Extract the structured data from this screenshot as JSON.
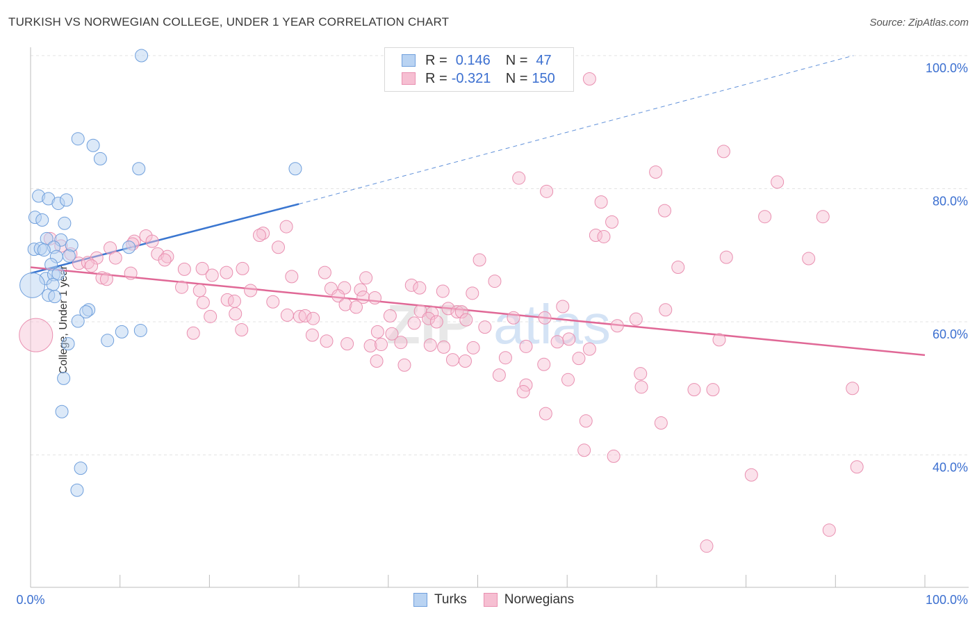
{
  "title": "TURKISH VS NORWEGIAN COLLEGE, UNDER 1 YEAR CORRELATION CHART",
  "source": "Source: ZipAtlas.com",
  "legend": {
    "r_label": "R =",
    "n_label": "N =",
    "turks_r": "0.146",
    "turks_n": "47",
    "norw_r": "-0.321",
    "norw_n": "150"
  },
  "bottom_legend": {
    "turks": "Turks",
    "norwegians": "Norwegians"
  },
  "colors": {
    "turks_fill": "#b9d3f2",
    "turks_edge": "#6f9fdc",
    "turks_line": "#3a76d0",
    "norw_fill": "#f6bfd2",
    "norw_edge": "#e98fb0",
    "norw_line": "#e06896",
    "axis_text": "#3b6fd0",
    "grid": "#e3e3e3"
  },
  "chart_data": {
    "type": "scatter",
    "title": "TURKISH VS NORWEGIAN COLLEGE, UNDER 1 YEAR CORRELATION CHART",
    "ylabel": "College, Under 1 year",
    "xlabel": "",
    "x_tick_labels": [
      "0.0%",
      "100.0%"
    ],
    "y_tick_labels": [
      "40.0%",
      "60.0%",
      "80.0%",
      "100.0%"
    ],
    "y_ticks": [
      40,
      60,
      80,
      100
    ],
    "xlim": [
      0,
      100
    ],
    "ylim": [
      20,
      102
    ],
    "grid": true,
    "series": [
      {
        "name": "Turks",
        "r": 0.146,
        "n": 47,
        "trend": {
          "x0": 0,
          "y0": 67.3,
          "x1": 30,
          "y1": 77.7,
          "dashed_to_x": 92,
          "dashed_to_y": 100
        },
        "points": [
          [
            12.4,
            100
          ],
          [
            5.3,
            87.5
          ],
          [
            7,
            86.5
          ],
          [
            7.8,
            84.5
          ],
          [
            12.1,
            83
          ],
          [
            29.6,
            83
          ],
          [
            0.9,
            78.9
          ],
          [
            2,
            78.5
          ],
          [
            3.1,
            77.8
          ],
          [
            4,
            78.3
          ],
          [
            0.5,
            75.7
          ],
          [
            1.3,
            75.3
          ],
          [
            3.8,
            74.8
          ],
          [
            1.8,
            72.5
          ],
          [
            3.4,
            72.3
          ],
          [
            4.6,
            71.5
          ],
          [
            2.6,
            71.2
          ],
          [
            0.4,
            70.9
          ],
          [
            1.1,
            71
          ],
          [
            1.5,
            70.8
          ],
          [
            11,
            71.2
          ],
          [
            2.9,
            69.8
          ],
          [
            4.3,
            69.9
          ],
          [
            2.3,
            68.6
          ],
          [
            1.7,
            66.5
          ],
          [
            2.6,
            67.1
          ],
          [
            3.1,
            67.2
          ],
          [
            2.5,
            65.6
          ],
          [
            0.2,
            65.5
          ],
          [
            2,
            64
          ],
          [
            2.7,
            63.8
          ],
          [
            6.5,
            61.8
          ],
          [
            6.2,
            61.5
          ],
          [
            5.3,
            60.1
          ],
          [
            10.2,
            58.5
          ],
          [
            12.3,
            58.7
          ],
          [
            8.6,
            57.2
          ],
          [
            4.2,
            56.7
          ],
          [
            3.7,
            51.5
          ],
          [
            3.5,
            46.5
          ],
          [
            5.6,
            38
          ],
          [
            5.2,
            34.7
          ]
        ]
      },
      {
        "name": "Norwegians",
        "r": -0.321,
        "n": 150,
        "trend": {
          "x0": 0,
          "y0": 68.2,
          "x1": 100,
          "y1": 55
        },
        "points": [
          [
            0.6,
            58
          ],
          [
            62.5,
            96.5
          ],
          [
            77.5,
            85.6
          ],
          [
            69.9,
            82.5
          ],
          [
            54.6,
            81.6
          ],
          [
            83.5,
            81
          ],
          [
            57.7,
            79.6
          ],
          [
            63.8,
            78
          ],
          [
            70.9,
            76.7
          ],
          [
            82.1,
            75.8
          ],
          [
            88.6,
            75.8
          ],
          [
            65,
            75
          ],
          [
            28.6,
            74.3
          ],
          [
            26,
            73.3
          ],
          [
            25.6,
            73
          ],
          [
            63.2,
            73
          ],
          [
            64.1,
            72.8
          ],
          [
            12.9,
            72.9
          ],
          [
            11.6,
            72.1
          ],
          [
            13.6,
            72.1
          ],
          [
            2.2,
            72.5
          ],
          [
            11.4,
            71.7
          ],
          [
            3.4,
            71.4
          ],
          [
            27.7,
            71.2
          ],
          [
            8.9,
            71.1
          ],
          [
            4.5,
            70.2
          ],
          [
            14.2,
            70.2
          ],
          [
            15.3,
            69.8
          ],
          [
            9.5,
            69.6
          ],
          [
            7.4,
            69.6
          ],
          [
            15,
            69.3
          ],
          [
            5.4,
            68.8
          ],
          [
            6.4,
            68.9
          ],
          [
            87,
            69.5
          ],
          [
            77.8,
            69.7
          ],
          [
            50.2,
            69.3
          ],
          [
            72.4,
            68.2
          ],
          [
            6.8,
            68.4
          ],
          [
            17.2,
            67.9
          ],
          [
            19.2,
            68
          ],
          [
            23.7,
            68
          ],
          [
            21.9,
            67.4
          ],
          [
            20.3,
            67
          ],
          [
            11.2,
            67.3
          ],
          [
            32.9,
            67.4
          ],
          [
            8,
            66.6
          ],
          [
            8.5,
            66.4
          ],
          [
            29.2,
            66.8
          ],
          [
            37.5,
            66.6
          ],
          [
            51.9,
            66.1
          ],
          [
            42.6,
            65.5
          ],
          [
            16.9,
            65.2
          ],
          [
            18.9,
            64.7
          ],
          [
            24.6,
            64.7
          ],
          [
            33.6,
            65
          ],
          [
            35.1,
            65.1
          ],
          [
            36.9,
            64.8
          ],
          [
            43.5,
            65.1
          ],
          [
            46.1,
            64.6
          ],
          [
            49.4,
            64.3
          ],
          [
            22,
            63.3
          ],
          [
            22.8,
            63.1
          ],
          [
            34.4,
            63.9
          ],
          [
            37.2,
            63.7
          ],
          [
            38.5,
            63.6
          ],
          [
            27.1,
            63
          ],
          [
            19.3,
            62.9
          ],
          [
            35.2,
            62.6
          ],
          [
            36.4,
            62.2
          ],
          [
            59.5,
            62.3
          ],
          [
            71,
            61.8
          ],
          [
            46.7,
            62
          ],
          [
            43.6,
            61.6
          ],
          [
            44.9,
            61.3
          ],
          [
            47.7,
            61.5
          ],
          [
            48.2,
            61.5
          ],
          [
            28.7,
            61
          ],
          [
            30.1,
            60.8
          ],
          [
            30.7,
            60.9
          ],
          [
            31.6,
            60.5
          ],
          [
            40.2,
            60.9
          ],
          [
            44.5,
            60.5
          ],
          [
            48.7,
            60.3
          ],
          [
            20.1,
            60.8
          ],
          [
            22.9,
            61.2
          ],
          [
            54,
            60.6
          ],
          [
            57.5,
            60.6
          ],
          [
            67.7,
            60.4
          ],
          [
            65.6,
            59.4
          ],
          [
            50.8,
            59.2
          ],
          [
            42.9,
            59.8
          ],
          [
            45.4,
            60
          ],
          [
            38.8,
            58.5
          ],
          [
            23.6,
            58.8
          ],
          [
            40.4,
            58.2
          ],
          [
            18.2,
            58.3
          ],
          [
            31.5,
            58
          ],
          [
            60.2,
            57.4
          ],
          [
            77,
            57.3
          ],
          [
            58.9,
            57
          ],
          [
            33.1,
            57.1
          ],
          [
            41.4,
            56.9
          ],
          [
            35.4,
            56.7
          ],
          [
            38,
            56.4
          ],
          [
            39.2,
            56.6
          ],
          [
            44.7,
            56.5
          ],
          [
            46.2,
            56.2
          ],
          [
            49.5,
            56.1
          ],
          [
            55.4,
            56.3
          ],
          [
            62.5,
            55.9
          ],
          [
            61.3,
            54.5
          ],
          [
            53.1,
            54.6
          ],
          [
            38.7,
            54.1
          ],
          [
            48.6,
            54.1
          ],
          [
            47.2,
            54.3
          ],
          [
            57.4,
            53.6
          ],
          [
            41.8,
            53.5
          ],
          [
            52.4,
            52
          ],
          [
            68.2,
            52.2
          ],
          [
            55.4,
            50.5
          ],
          [
            68.3,
            50.2
          ],
          [
            91.9,
            50
          ],
          [
            74.2,
            49.8
          ],
          [
            55.1,
            49.5
          ],
          [
            60.1,
            51.3
          ],
          [
            70.5,
            44.8
          ],
          [
            62.1,
            45.1
          ],
          [
            76.3,
            49.8
          ],
          [
            57.6,
            46.2
          ],
          [
            61.9,
            40.7
          ],
          [
            65.2,
            39.8
          ],
          [
            80.6,
            37
          ],
          [
            89.3,
            28.7
          ],
          [
            92.4,
            38.2
          ],
          [
            75.6,
            26.3
          ]
        ]
      }
    ]
  }
}
